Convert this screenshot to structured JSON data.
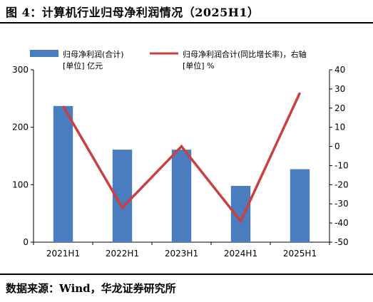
{
  "figure": {
    "title": "图 4：计算机行业归母净利润情况（2025H1）",
    "source": "数据来源：Wind，华龙证券研究所"
  },
  "chart_data": {
    "type": "bar",
    "categories": [
      "2021H1",
      "2022H1",
      "2023H1",
      "2024H1",
      "2025H1"
    ],
    "series": [
      {
        "name": "归母净利润(合计)",
        "unit_label": "[单位] 亿元",
        "type": "bar",
        "axis": "left",
        "color": "#4a7cc0",
        "values": [
          237,
          161,
          161,
          98,
          127
        ]
      },
      {
        "name": "归母净利润合计(同比增长率)，右轴",
        "unit_label": "[单位] %",
        "type": "line",
        "axis": "right",
        "color": "#c84040",
        "values": [
          21,
          -32,
          0,
          -39,
          28
        ]
      }
    ],
    "y_left": {
      "ylim": [
        0,
        300
      ],
      "ticks": [
        0,
        100,
        200,
        300
      ]
    },
    "y_right": {
      "ylim": [
        -50,
        40
      ],
      "ticks": [
        -50,
        -40,
        -30,
        -20,
        -10,
        0,
        10,
        20,
        30,
        40
      ]
    },
    "legend_position": "top",
    "grid": false
  }
}
